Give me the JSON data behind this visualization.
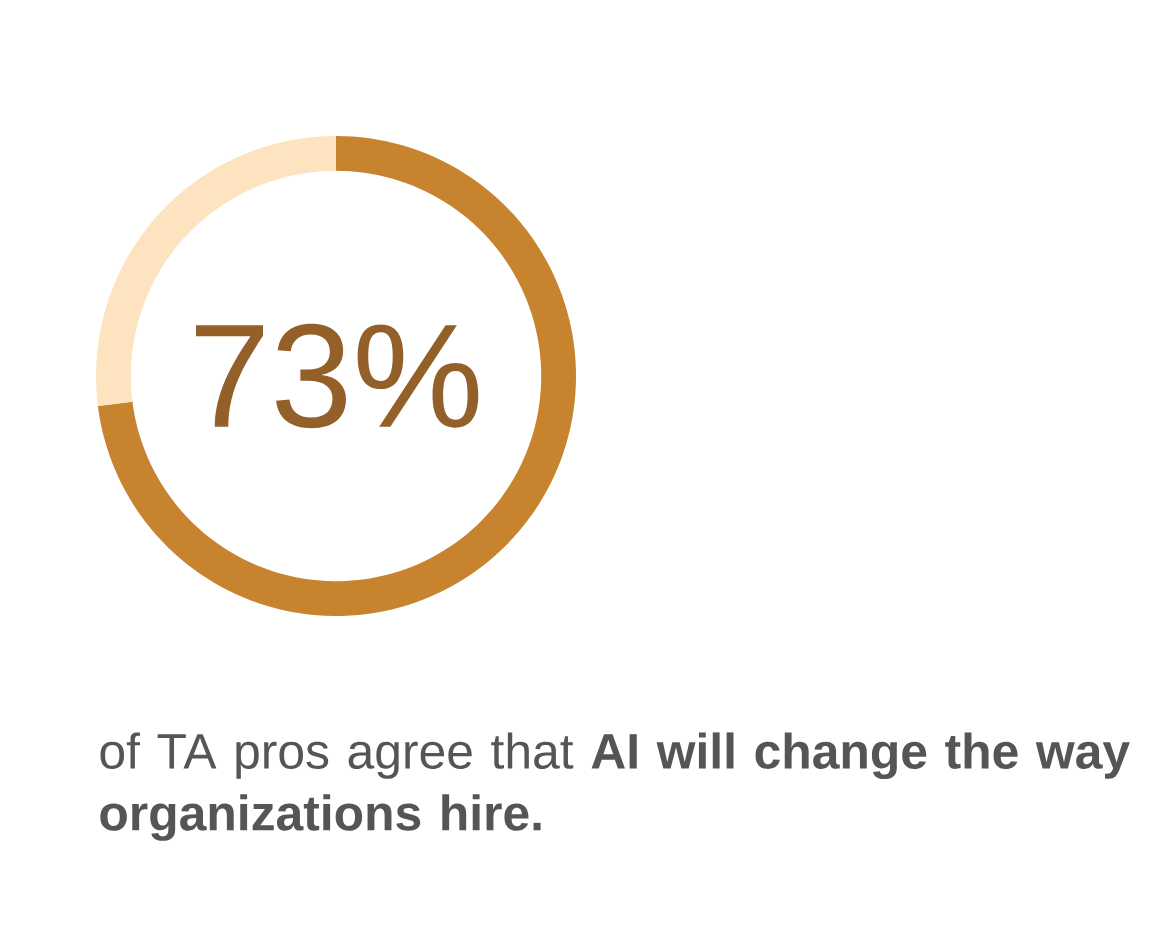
{
  "chart_data": {
    "type": "donut",
    "categories": [
      null,
      null
    ],
    "values": [
      73,
      27
    ],
    "colors": [
      "#c8832f",
      "#fde3c0"
    ],
    "value_labels": [
      "73%",
      null
    ],
    "annotations": [
      "of TA pros agree that **AI will change the way organizations hire.**"
    ]
  }
}
